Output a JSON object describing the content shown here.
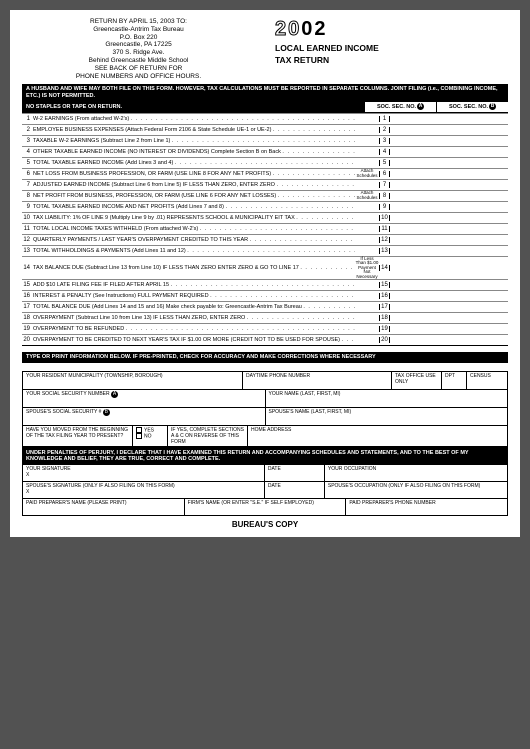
{
  "return": {
    "l1": "RETURN BY APRIL 15, 2003 TO:",
    "l2": "Greencastle-Antrim Tax Bureau",
    "l3": "P.O. Box 220",
    "l4": "Greencastle, PA 17225",
    "l5": "370 S. Ridge Ave.",
    "l6": "Behind Greencastle Middle School",
    "l7": "SEE BACK OF RETURN FOR",
    "l8": "PHONE NUMBERS AND OFFICE HOURS."
  },
  "year": {
    "pre": "20",
    "post": "02",
    "t1": "LOCAL EARNED INCOME",
    "t2": "TAX RETURN"
  },
  "bar1": "A HUSBAND AND WIFE MAY BOTH FILE ON THIS FORM. HOWEVER, TAX CALCULATIONS MUST BE REPORTED IN SEPARATE COLUMNS. JOINT FILING (i.e., COMBINING INCOME, ETC.) IS NOT PERMITTED.",
  "nostaple": "NO STAPLES OR TAPE ON RETURN.",
  "socA": "SOC. SEC. NO.",
  "socB": "SOC. SEC. NO.",
  "lines": [
    {
      "n": "1",
      "d": "W-2 EARNINGS (From attached W-2's)"
    },
    {
      "n": "2",
      "d": "EMPLOYEE BUSINESS EXPENSES (Attach Federal Form 2106 & State Schedule UE-1 or UE-2)"
    },
    {
      "n": "3",
      "d": "TAXABLE W-2 EARNINGS (Subtract Line 2 from Line 1)",
      "s": 1
    },
    {
      "n": "4",
      "d": "OTHER TAXABLE EARNED INCOME (NO INTEREST OR DIVIDENDS) Complete Section B on Back"
    },
    {
      "n": "5",
      "d": "TOTAL TAXABLE EARNED INCOME (Add Lines 3 and 4)",
      "s": 1
    },
    {
      "n": "6",
      "d": "NET LOSS FROM BUSINESS PROFESSION, OR FARM (USE LINE 8 FOR ANY NET PROFITS)",
      "a": "Attach Schedules"
    },
    {
      "n": "7",
      "d": "ADJUSTED EARNED INCOME (Subtract Line 6 from Line 5) IF LESS THAN ZERO, ENTER ZERO"
    },
    {
      "n": "8",
      "d": "NET PROFIT FROM BUSINESS, PROFESSION, OR FARM (USE LINE 6 FOR ANY NET LOSSES)",
      "a": "Attach Schedules"
    },
    {
      "n": "9",
      "d": "TOTAL TAXABLE EARNED INCOME AND NET PROFITS (Add Lines 7 and 8)",
      "s": 1
    },
    {
      "n": "10",
      "d": "TAX LIABILITY: 1% OF LINE 9 (Multiply Line 9 by .01) REPRESENTS SCHOOL & MUNICIPALITY EIT TAX"
    },
    {
      "n": "11",
      "d": "TOTAL LOCAL INCOME TAXES WITHHELD (From attached W-2's)"
    },
    {
      "n": "12",
      "d": "QUARTERLY PAYMENTS / LAST YEAR'S OVERPAYMENT CREDITED TO THIS YEAR"
    },
    {
      "n": "13",
      "d": "TOTAL WITHHOLDINGS & PAYMENTS (Add Lines 11 and 12)"
    },
    {
      "n": "14",
      "d": "TAX BALANCE DUE (Subtract Line 13 from Line 10) IF LESS THAN ZERO ENTER ZERO & GO TO LINE 17",
      "a": "If Less Than $1.00 Payment Not Necessary"
    },
    {
      "n": "15",
      "d": "ADD $10 LATE FILING FEE IF FILED AFTER APRIL 15"
    },
    {
      "n": "16",
      "d": "INTEREST & PENALTY (See Instructions) FULL PAYMENT REQUIRED"
    },
    {
      "n": "17",
      "d": "TOTAL BALANCE DUE (Add Lines 14 and 15 and 16) Make check payable to: Greencastle-Antrim Tax Bureau"
    },
    {
      "n": "18",
      "d": "OVERPAYMENT (Subtract Line 10 from Line 13) IF LESS THAN ZERO, ENTER ZERO"
    },
    {
      "n": "19",
      "d": "OVERPAYMENT TO BE REFUNDED"
    },
    {
      "n": "20",
      "d": "OVERPAYMENT TO BE CREDITED TO NEXT YEAR'S TAX IF $1.00 OR MORE (CREDIT NOT TO BE USED FOR SPOUSE)"
    }
  ],
  "bar2": "TYPE OR PRINT INFORMATION BELOW. IF PRE-PRINTED, CHECK FOR ACCURACY AND MAKE CORRECTIONS WHERE NECESSARY",
  "info": {
    "muni": "YOUR RESIDENT MUNICIPALITY (TOWNSHIP, BOROUGH)",
    "phone": "DAYTIME PHONE NUMBER",
    "tax": "TAX OFFICE USE ONLY",
    "dpt": "DPT",
    "census": "CENSUS",
    "ssnA": "YOUR SOCIAL SECURITY NUMBER",
    "name": "YOUR NAME (LAST, FIRST, MI)",
    "ssnB": "SPOUSE'S SOCIAL SECURITY #",
    "sname": "SPOUSE'S NAME (LAST, FIRST, MI)",
    "moved": "HAVE YOU MOVED FROM THE BEGINNING OF THE TAX FILING YEAR TO PRESENT?",
    "yes": "YES",
    "no": "NO",
    "ifyes": "IF YES, COMPLETE SECTIONS A & C ON REVERSE OF THIS FORM",
    "home": "HOME ADDRESS"
  },
  "bar3": "UNDER PENALTIES OF PERJURY, I DECLARE THAT I HAVE EXAMINED THIS RETURN AND ACCOMPANYING SCHEDULES AND STATEMENTS, AND TO THE BEST OF MY KNOWLEDGE AND BELIEF, THEY ARE TRUE, CORRECT AND COMPLETE.",
  "sig": {
    "your": "YOUR SIGNATURE",
    "date": "DATE",
    "occ": "YOUR OCCUPATION",
    "sp": "SPOUSE'S SIGNATURE (ONLY IF ALSO FILING ON THIS FORM)",
    "socc": "SPOUSE'S OCCUPATION (ONLY IF ALSO FILING ON THIS FORM)",
    "prep": "PAID PREPARER'S NAME (PLEASE PRINT)",
    "firm": "FIRM'S NAME (OR ENTER \"S.E.\" IF SELF EMPLOYED)",
    "pphone": "PAID PREPARER'S PHONE NUMBER"
  },
  "foot": "BUREAU'S COPY"
}
